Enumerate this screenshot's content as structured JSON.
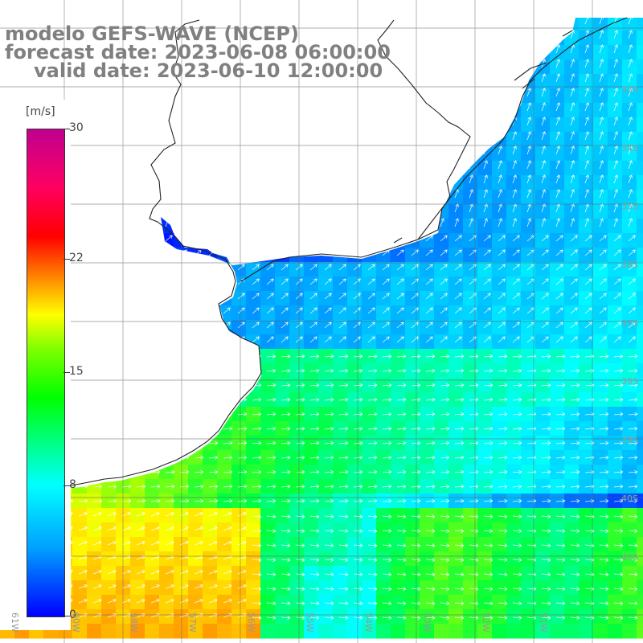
{
  "title": {
    "line1": "modelo GEFS-WAVE (NCEP)",
    "line2": "forecast date: 2023-06-08 06:00:00",
    "line3": "valid date: 2023-06-10 12:00:00"
  },
  "legend": {
    "unit": "[m/s]",
    "ticks": [
      "30",
      "22",
      "15",
      "8",
      "0"
    ],
    "tick_values": [
      30,
      22,
      15,
      8,
      0
    ],
    "range": [
      0,
      30
    ],
    "colors": [
      "#0000ff",
      "#00a0ff",
      "#00ffff",
      "#00ff00",
      "#ffff00",
      "#ff8000",
      "#ff0000",
      "#c00090"
    ]
  },
  "axes": {
    "lat_labels": [
      "33S",
      "34S",
      "35S",
      "36S",
      "37S",
      "38S",
      "39S",
      "40S",
      "41S"
    ],
    "lon_labels": [
      "61W",
      "60W",
      "58W",
      "57W",
      "56W",
      "55W",
      "54W",
      "53W",
      "52W",
      "51W"
    ]
  },
  "map": {
    "field": "wind speed",
    "land_color": "#ffffff",
    "grid": true
  }
}
